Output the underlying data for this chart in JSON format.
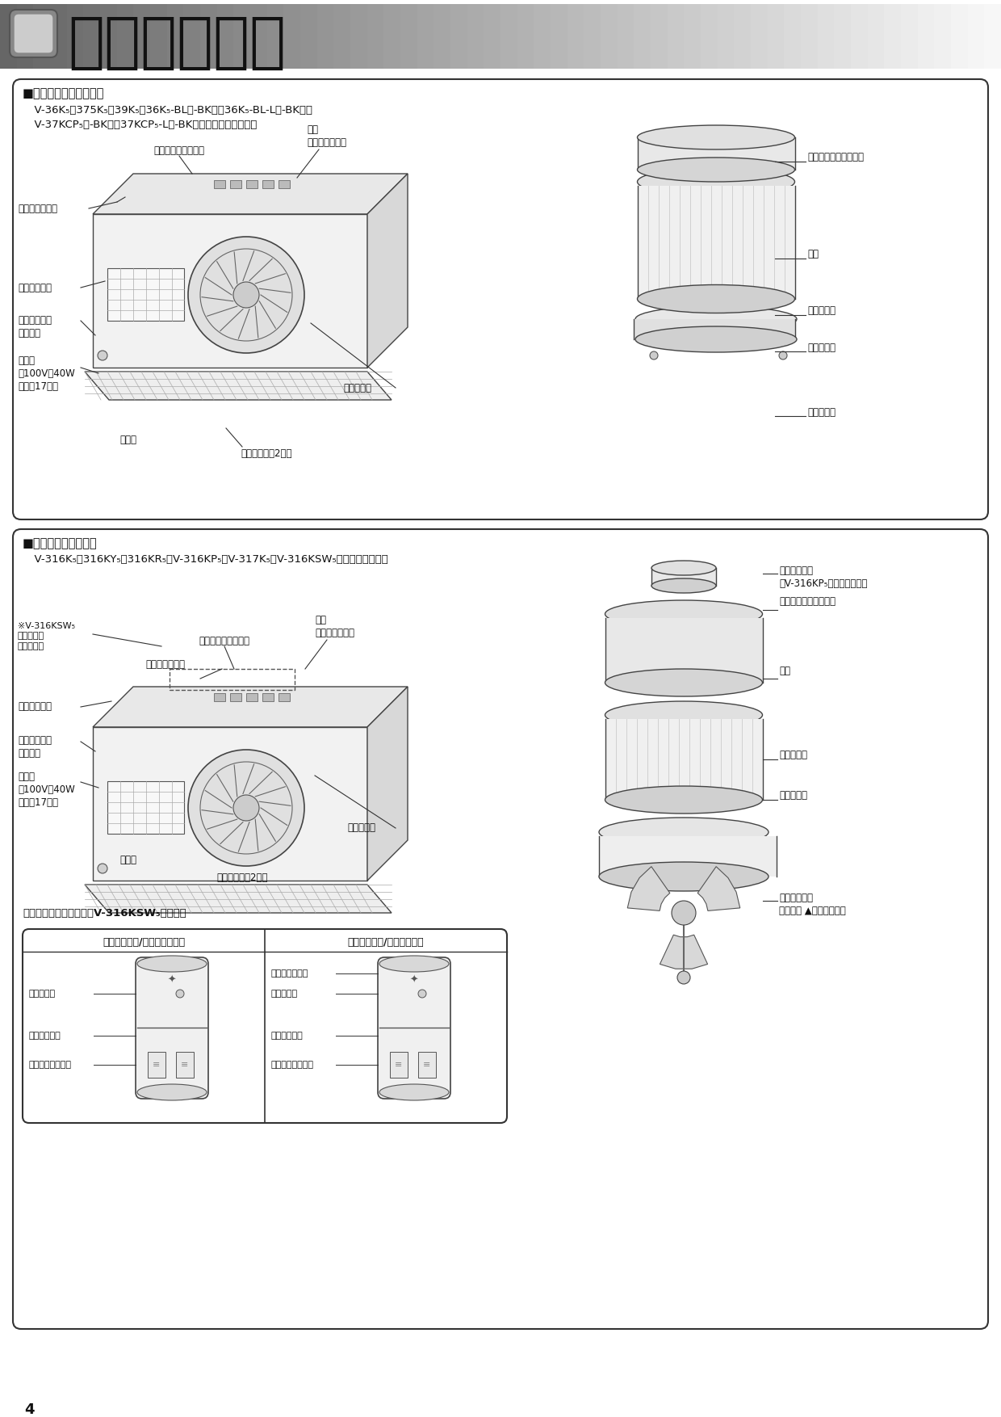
{
  "page_background": "#ffffff",
  "header_text": "各部のなまえ",
  "header_font_size": 54,
  "page_number": "4",
  "section1_title": "■シロッコファンタイプ",
  "section1_models_line1": "  V-36K₅・375K₅・39K₅・36K₅-BL（-BK）・36K₅-BL-L（-BK）・",
  "section1_models_line2": "  V-37KCP₅（-BK）・37KCP₅-L（-BK）　（丸排気タイプ）",
  "section2_title": "■ターボファンタイプ",
  "section2_models_line1": "  V-316K₅・316KY₅・316KR₅・V-316KP₅・V-317K₅・V-316KSW₅（角排気タイプ）",
  "control_switch_title": "コントロールスイッチ（V-316KSW₅の場合）",
  "control_switch_left_title": "照明ランプ入/切スイッチなし",
  "control_switch_right_title": "照明ランプ入/切スイッチ付",
  "s1_label_furyoku": "風量切換ボタン",
  "s1_label_lamp_in": "ランプ入／切ボタン",
  "s1_label_hontai": "本体\n（ケーシング）",
  "s1_label_motor": "モーターシャフトピン",
  "s1_label_lampcover": "ランプカバー",
  "s1_label_lampscrew": "ランプカバー\n取付ねじ",
  "s1_label_lamp": "ランプ\n（100V，40W\n口金彄17㎜）",
  "s1_label_sashikomi": "差込部",
  "s1_label_filter": "フィルター（2層）",
  "s1_label_bellmouth": "ベルマウス",
  "s1_label_hane": "羽根",
  "s1_label_spinner": "スピンナー",
  "s1_label_bellmouth2": "ベルマウス",
  "s1_label_tsumami": "つまみねじ",
  "s2_label_furyoku": "風量切換ボタン",
  "s2_label_lamp_in": "ランプ入／切ボタン",
  "s2_label_hontai": "本体\n（ケーシング）",
  "s2_label_gomu": "ゴムキャップ\n（V-316KP₅はありません）",
  "s2_label_motor": "モーターシャフトピン",
  "s2_label_v316": "※V-316KSW₅\nはボタンは\nありません",
  "s2_label_lampcover": "ランプカバー",
  "s2_label_lampscrew": "ランプカバー\n取付ねじ",
  "s2_label_lamp": "ランプ\n（100V，40W\n口金彄17㎜）",
  "s2_label_sashikomi": "差込部",
  "s2_label_filter": "フィルター（2層）",
  "s2_label_bellmouth": "ベルマウス",
  "s2_label_hane": "羽根",
  "s2_label_spinner": "スピンナー",
  "s2_label_bellmouth2": "ベルマウス",
  "s2_label_chobolto": "ちょうボルト\n（または ▲つまみねじ）",
  "sw_left_labels": [
    "表示ランプ",
    "電源スイッチ",
    "風量切換スイッチ"
  ],
  "sw_right_labels": [
    "ランプスイッチ",
    "表示ランプ",
    "電源スイッチ",
    "風量切換スイッチ"
  ],
  "text_color": "#111111",
  "label_font_size": 8.5,
  "title_font_size": 10.5,
  "model_font_size": 9.5
}
